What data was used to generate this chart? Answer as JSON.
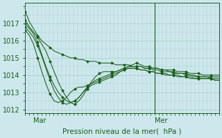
{
  "bg_color": "#cce8ec",
  "grid_color": "#aacccc",
  "line_color": "#1a5c1a",
  "marker_color": "#1a5c1a",
  "xlabel": "Pression niveau de la mer(  hPa )",
  "xlabel_color": "#1a5c1a",
  "tick_color": "#1a5c1a",
  "ylim": [
    1011.8,
    1018.2
  ],
  "yticks": [
    1012,
    1013,
    1014,
    1015,
    1016,
    1017
  ],
  "xlim": [
    0,
    48
  ],
  "xtick_positions": [
    2,
    32
  ],
  "xtick_labels": [
    "Mar",
    "Mer"
  ],
  "vline_x": 32,
  "series": [
    [
      1017.7,
      1017.1,
      1016.7,
      1016.3,
      1016.0,
      1015.8,
      1015.6,
      1015.4,
      1015.3,
      1015.2,
      1015.1,
      1015.0,
      1015.0,
      1014.9,
      1014.9,
      1014.8,
      1014.8,
      1014.8,
      1014.7,
      1014.7,
      1014.7,
      1014.7,
      1014.6,
      1014.6,
      1014.6,
      1014.6,
      1014.5,
      1014.5,
      1014.5,
      1014.4,
      1014.4,
      1014.4,
      1014.4,
      1014.3,
      1014.3,
      1014.3,
      1014.3,
      1014.2,
      1014.2,
      1014.2,
      1014.1,
      1014.1,
      1014.1,
      1014.0,
      1014.0,
      1014.0,
      1014.0,
      1014.0
    ],
    [
      1017.2,
      1016.8,
      1016.5,
      1016.2,
      1015.8,
      1015.4,
      1014.8,
      1014.2,
      1013.6,
      1013.1,
      1012.7,
      1012.4,
      1012.3,
      1012.5,
      1012.8,
      1013.2,
      1013.6,
      1013.9,
      1014.1,
      1014.2,
      1014.2,
      1014.2,
      1014.2,
      1014.3,
      1014.4,
      1014.5,
      1014.6,
      1014.7,
      1014.6,
      1014.5,
      1014.5,
      1014.4,
      1014.4,
      1014.3,
      1014.3,
      1014.2,
      1014.2,
      1014.1,
      1014.1,
      1014.1,
      1014.0,
      1014.0,
      1013.9,
      1013.9,
      1013.9,
      1013.9,
      1013.9,
      1013.9
    ],
    [
      1016.8,
      1016.5,
      1016.2,
      1015.7,
      1015.1,
      1014.4,
      1013.7,
      1013.1,
      1012.7,
      1012.4,
      1012.3,
      1012.4,
      1012.5,
      1012.7,
      1013.0,
      1013.3,
      1013.5,
      1013.7,
      1013.8,
      1013.9,
      1014.0,
      1014.1,
      1014.2,
      1014.3,
      1014.4,
      1014.5,
      1014.5,
      1014.5,
      1014.5,
      1014.4,
      1014.4,
      1014.3,
      1014.3,
      1014.2,
      1014.2,
      1014.2,
      1014.1,
      1014.1,
      1014.1,
      1014.0,
      1014.0,
      1013.9,
      1013.9,
      1013.9,
      1013.9,
      1013.8,
      1013.8,
      1013.8
    ],
    [
      1016.6,
      1016.3,
      1015.8,
      1015.0,
      1014.2,
      1013.5,
      1012.9,
      1012.5,
      1012.4,
      1012.5,
      1012.7,
      1013.0,
      1013.2,
      1013.3,
      1013.3,
      1013.4,
      1013.5,
      1013.6,
      1013.7,
      1013.8,
      1013.9,
      1014.0,
      1014.1,
      1014.2,
      1014.3,
      1014.4,
      1014.4,
      1014.4,
      1014.3,
      1014.3,
      1014.2,
      1014.2,
      1014.1,
      1014.1,
      1014.1,
      1014.0,
      1014.0,
      1014.0,
      1013.9,
      1013.9,
      1013.9,
      1013.8,
      1013.8,
      1013.8,
      1013.8,
      1013.8,
      1013.7,
      1013.7
    ],
    [
      1017.0,
      1016.7,
      1016.4,
      1015.9,
      1015.2,
      1014.5,
      1013.9,
      1013.4,
      1013.0,
      1012.7,
      1012.5,
      1012.4,
      1012.5,
      1012.7,
      1013.0,
      1013.2,
      1013.4,
      1013.5,
      1013.6,
      1013.7,
      1013.8,
      1013.9,
      1014.0,
      1014.2,
      1014.3,
      1014.4,
      1014.4,
      1014.4,
      1014.3,
      1014.3,
      1014.2,
      1014.2,
      1014.1,
      1014.1,
      1014.0,
      1014.0,
      1014.0,
      1013.9,
      1013.9,
      1013.9,
      1013.8,
      1013.8,
      1013.8,
      1013.8,
      1013.8,
      1013.8,
      1013.7,
      1013.7
    ]
  ]
}
